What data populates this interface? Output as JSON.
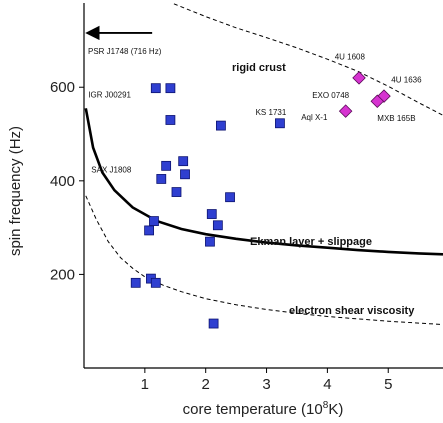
{
  "chart_data": {
    "type": "scatter",
    "title": "",
    "xlabel": "core temperature (10",
    "xlabel_exponent": "8",
    "xlabel_unit": "K)",
    "ylabel": "spin frequency (Hz)",
    "xlim": [
      0,
      5.9
    ],
    "ylim": [
      0,
      780
    ],
    "grid": false,
    "x_ticks": [
      1,
      2,
      3,
      4,
      5
    ],
    "y_ticks": [
      200,
      400,
      600
    ],
    "colors": {
      "square_fill": "#2f3fd0",
      "square_stroke": "#0c1370",
      "diamond_fill": "#d633d0",
      "diamond_stroke": "#5a0b58",
      "line": "#000000"
    },
    "series": [
      {
        "marker": "square",
        "points": [
          {
            "x": 1.18,
            "y": 598
          },
          {
            "x": 1.42,
            "y": 598
          },
          {
            "x": 1.42,
            "y": 530
          },
          {
            "x": 2.25,
            "y": 518
          },
          {
            "x": 3.22,
            "y": 523
          },
          {
            "x": 1.35,
            "y": 432
          },
          {
            "x": 1.63,
            "y": 442
          },
          {
            "x": 1.66,
            "y": 414
          },
          {
            "x": 1.27,
            "y": 404
          },
          {
            "x": 1.52,
            "y": 376
          },
          {
            "x": 2.4,
            "y": 365
          },
          {
            "x": 2.1,
            "y": 329
          },
          {
            "x": 1.15,
            "y": 314
          },
          {
            "x": 2.2,
            "y": 305
          },
          {
            "x": 1.07,
            "y": 294
          },
          {
            "x": 2.07,
            "y": 270
          },
          {
            "x": 1.1,
            "y": 191
          },
          {
            "x": 0.85,
            "y": 182
          },
          {
            "x": 1.18,
            "y": 182
          },
          {
            "x": 2.13,
            "y": 95
          }
        ]
      },
      {
        "marker": "diamond",
        "points": [
          {
            "x": 4.52,
            "y": 620
          },
          {
            "x": 4.93,
            "y": 581
          },
          {
            "x": 4.82,
            "y": 570
          },
          {
            "x": 4.3,
            "y": 549
          }
        ]
      }
    ],
    "curves": [
      {
        "label": "Ekman layer + slippage",
        "style": "solid",
        "width": 2.6,
        "points": [
          [
            0.03,
            555
          ],
          [
            0.15,
            471
          ],
          [
            0.3,
            418
          ],
          [
            0.5,
            380
          ],
          [
            0.8,
            343
          ],
          [
            1.2,
            314
          ],
          [
            1.6,
            297
          ],
          [
            2.0,
            286
          ],
          [
            2.5,
            276
          ],
          [
            3.0,
            268
          ],
          [
            3.5,
            262
          ],
          [
            4.0,
            257
          ],
          [
            4.5,
            252
          ],
          [
            5.0,
            248
          ],
          [
            5.5,
            245
          ],
          [
            5.9,
            243
          ]
        ]
      },
      {
        "label": "electron shear viscosity",
        "style": "dashed",
        "width": 1.0,
        "points": [
          [
            0.03,
            368
          ],
          [
            0.2,
            318
          ],
          [
            0.4,
            270
          ],
          [
            0.6,
            236
          ],
          [
            0.8,
            213
          ],
          [
            1.0,
            195
          ],
          [
            1.3,
            177
          ],
          [
            1.6,
            163
          ],
          [
            2.0,
            148
          ],
          [
            2.5,
            135
          ],
          [
            3.0,
            125
          ],
          [
            3.5,
            117
          ],
          [
            4.0,
            110
          ],
          [
            4.5,
            105
          ],
          [
            5.0,
            100
          ],
          [
            5.5,
            96
          ],
          [
            5.9,
            93
          ]
        ]
      },
      {
        "label": "rigid crust",
        "style": "dashed",
        "width": 1.0,
        "points": [
          [
            0.95,
            808
          ],
          [
            1.5,
            777
          ],
          [
            2.0,
            751
          ],
          [
            2.5,
            727
          ],
          [
            3.0,
            706
          ],
          [
            3.5,
            684
          ],
          [
            4.0,
            660
          ],
          [
            4.5,
            634
          ],
          [
            5.0,
            602
          ],
          [
            5.5,
            567
          ],
          [
            5.9,
            540
          ]
        ]
      }
    ],
    "reference_line": {
      "label": "PSR J1748 (716 Hz)",
      "y": 716,
      "x_from": 0,
      "x_to": 1.12
    },
    "annotations": [
      {
        "text": "IGR J00291",
        "x": 0.07,
        "y": 578
      },
      {
        "text": "SAX J1808",
        "x": 0.12,
        "y": 418
      },
      {
        "text": "KS 1731",
        "x": 2.82,
        "y": 541
      },
      {
        "text": "4U 1608",
        "x": 4.12,
        "y": 659
      },
      {
        "text": "4U 1636",
        "x": 5.05,
        "y": 610
      },
      {
        "text": "EXO 0748",
        "x": 3.75,
        "y": 577
      },
      {
        "text": "Aql X-1",
        "x": 3.57,
        "y": 530
      },
      {
        "text": "MXB 165B",
        "x": 4.82,
        "y": 528
      }
    ]
  }
}
